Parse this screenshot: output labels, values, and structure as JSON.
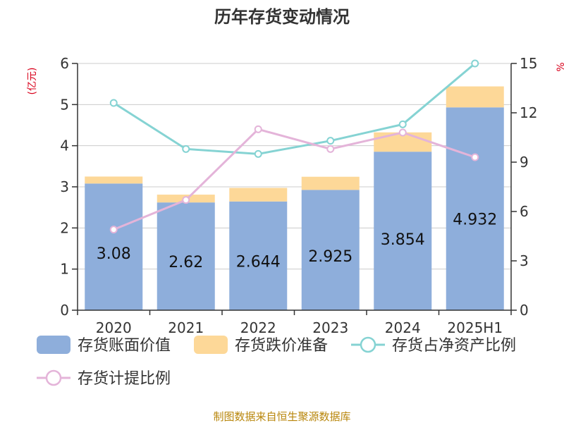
{
  "chart_data": {
    "type": "bar",
    "title": "历年存货变动情况",
    "categories": [
      "2020",
      "2021",
      "2022",
      "2023",
      "2024",
      "2025H1"
    ],
    "y_left_label": "(亿元)",
    "y_right_label": "%",
    "y_left_range": [
      0,
      6
    ],
    "y_left_ticks": [
      0,
      1,
      2,
      3,
      4,
      5,
      6
    ],
    "y_right_range": [
      0,
      15
    ],
    "y_right_ticks": [
      0,
      3,
      6,
      9,
      12,
      15
    ],
    "grid": true,
    "legend_position": "bottom",
    "series": [
      {
        "name": "存货账面价值",
        "kind": "bar",
        "stack": "inv",
        "color": "#8eaedb",
        "values": [
          3.08,
          2.62,
          2.644,
          2.925,
          3.854,
          4.932
        ],
        "labels": [
          "3.08",
          "2.62",
          "2.644",
          "2.925",
          "3.854",
          "4.932"
        ]
      },
      {
        "name": "存货跌价准备",
        "kind": "bar",
        "stack": "inv",
        "color": "#fdd898",
        "values": [
          0.17,
          0.19,
          0.33,
          0.32,
          0.47,
          0.51
        ]
      },
      {
        "name": "存货占净资产比例",
        "kind": "line",
        "axis": "right",
        "color": "#85d3d3",
        "values": [
          12.6,
          9.8,
          9.5,
          10.3,
          11.3,
          15.0
        ]
      },
      {
        "name": "存货计提比例",
        "kind": "line",
        "axis": "right",
        "color": "#e4b4d9",
        "values": [
          4.9,
          6.7,
          11.0,
          9.8,
          10.8,
          9.3
        ]
      }
    ]
  },
  "footer": {
    "source": "制图数据来自恒生聚源数据库"
  }
}
